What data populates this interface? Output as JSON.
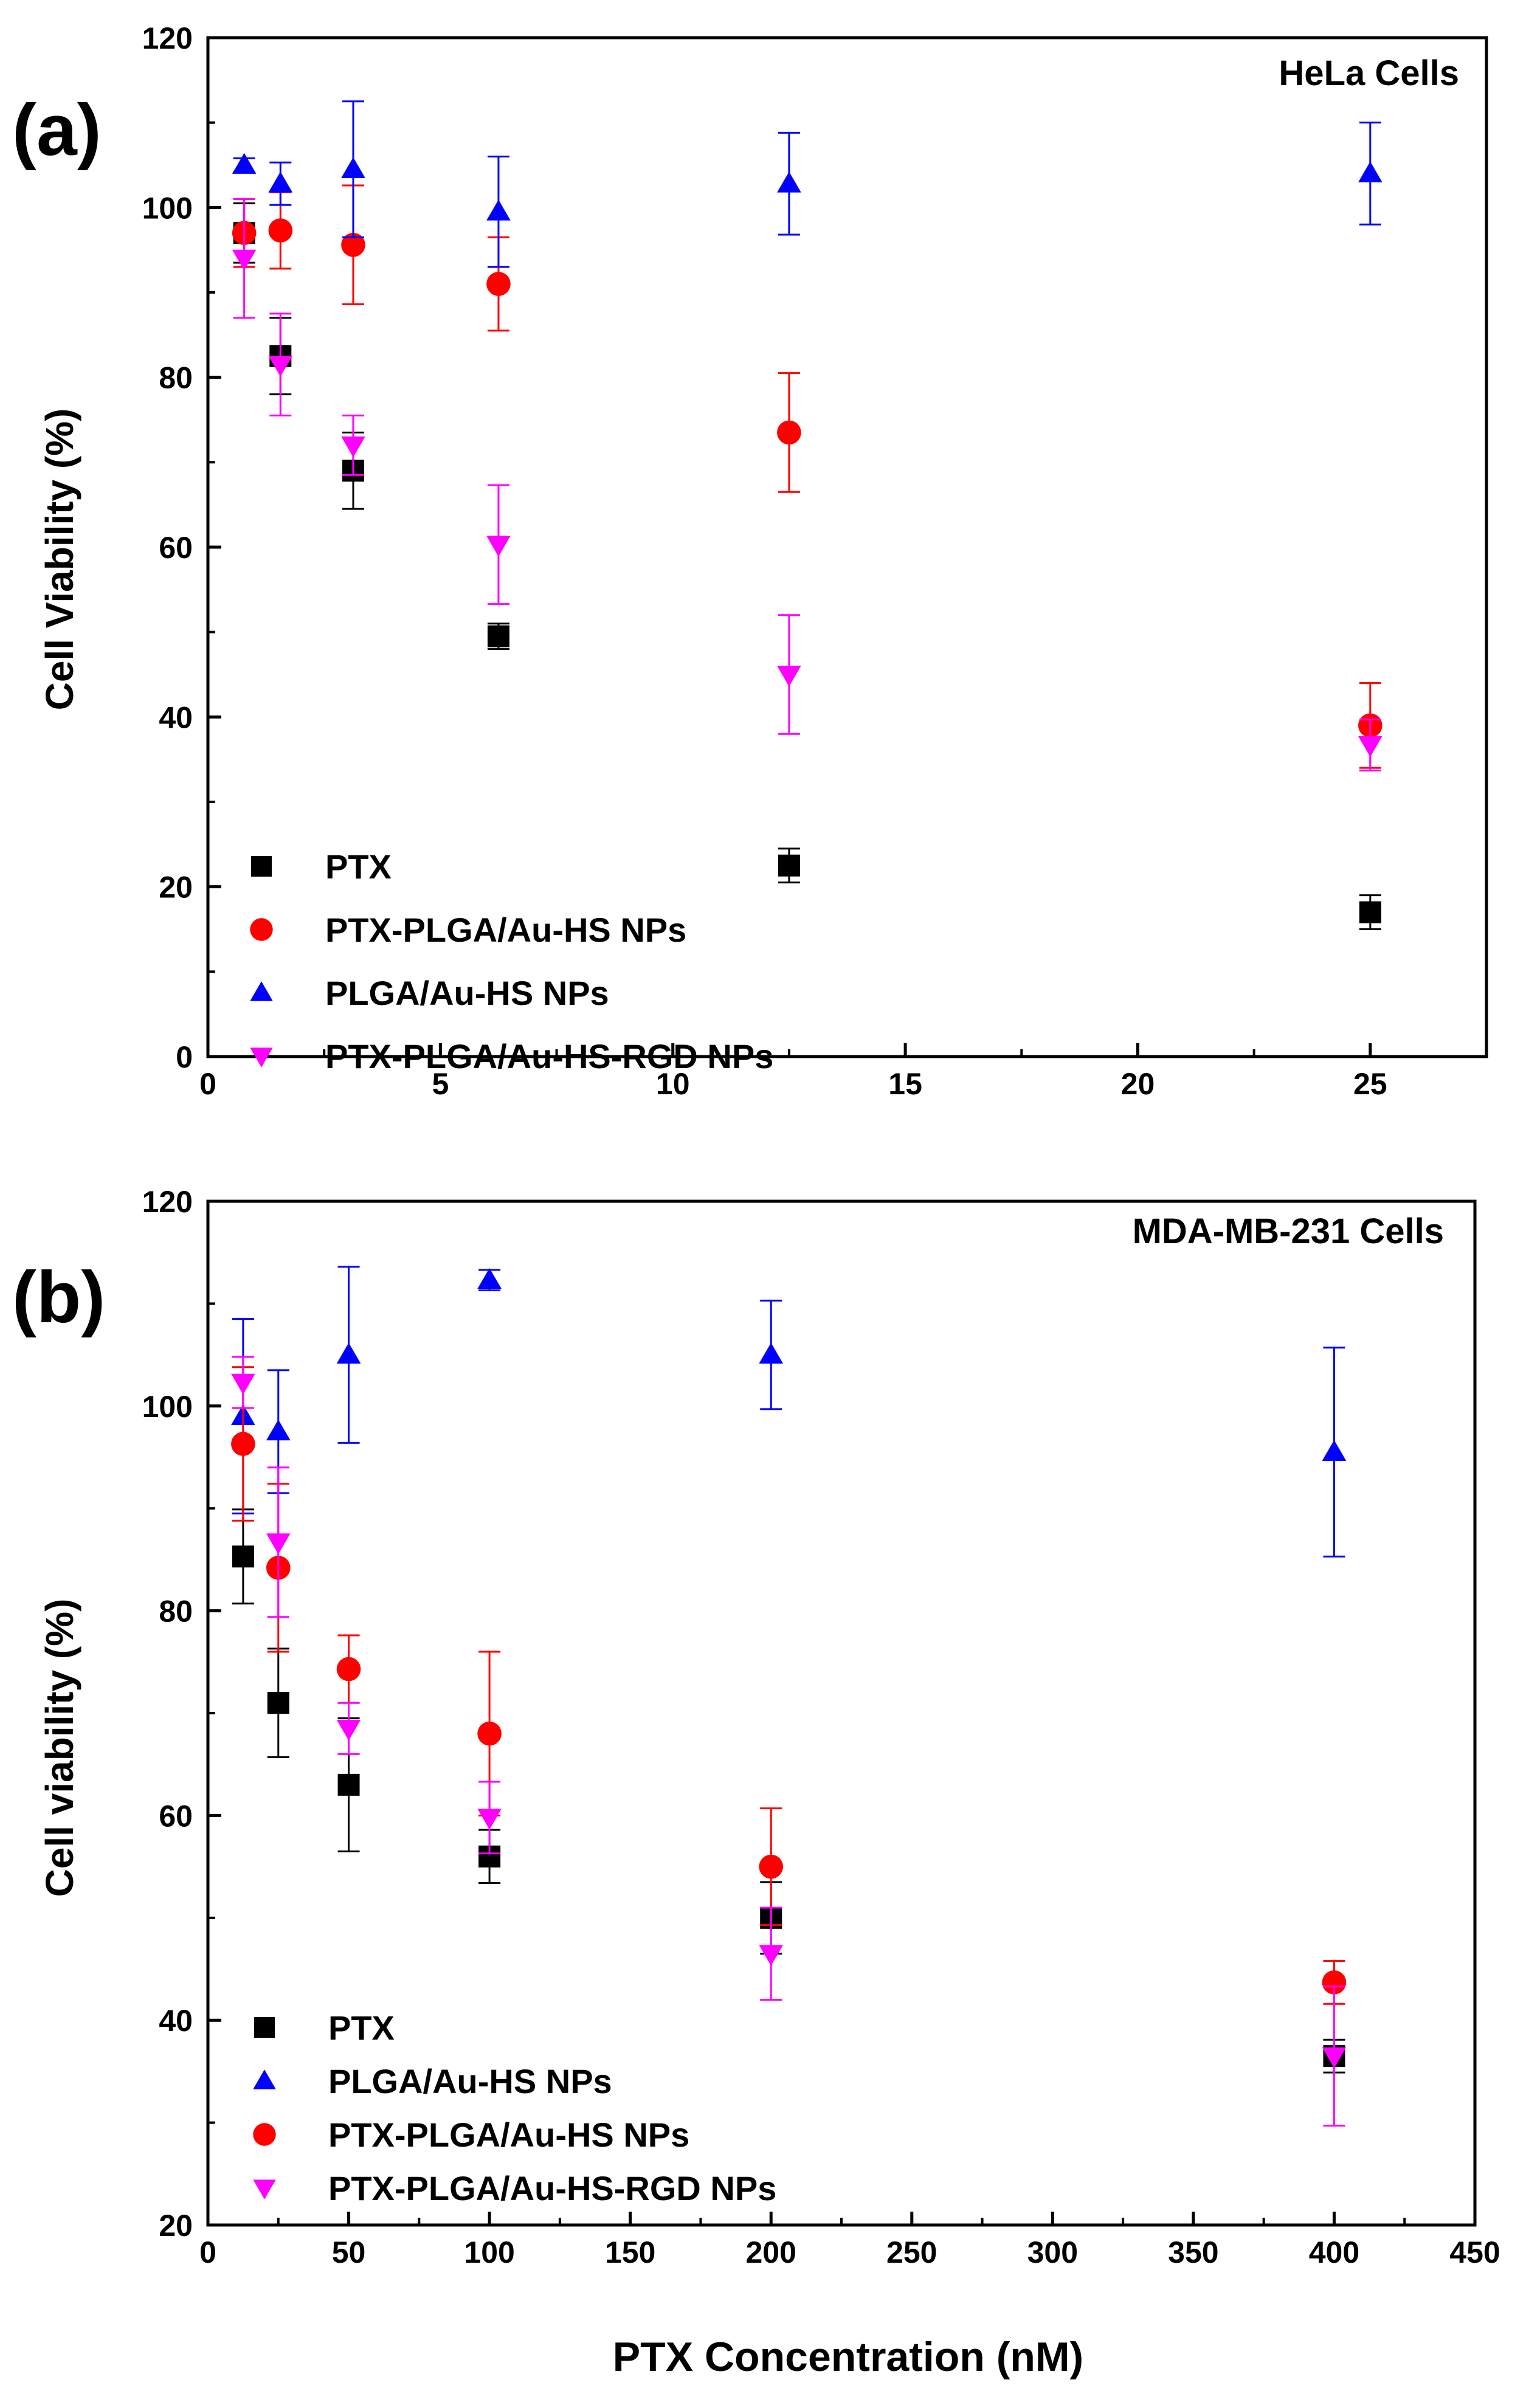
{
  "figure": {
    "panel_a_label": "(a)",
    "panel_b_label": "(b)",
    "shared_xlabel": "PTX Concentration (nM)"
  },
  "chart_data": [
    {
      "type": "scatter",
      "panel": "a",
      "title": "HeLa Cells",
      "xlabel": "",
      "ylabel": "Cell Viability (%)",
      "xlim": [
        0,
        27.5
      ],
      "ylim": [
        0,
        120
      ],
      "xticks": [
        0,
        5,
        10,
        15,
        20,
        25
      ],
      "yticks": [
        0,
        20,
        40,
        60,
        80,
        100,
        120
      ],
      "legend_position": "bottom-left",
      "series": [
        {
          "name": "PTX",
          "marker": "square",
          "color": "#000000",
          "x": [
            0.78,
            1.56,
            3.125,
            6.25,
            12.5,
            25
          ],
          "y": [
            97,
            82.5,
            69,
            49.5,
            22.5,
            17
          ],
          "err": [
            3.5,
            4.5,
            4.5,
            1.5,
            2,
            2
          ]
        },
        {
          "name": "PTX-PLGA/Au-HS NPs",
          "marker": "circle",
          "color": "#ff0000",
          "x": [
            0.78,
            1.56,
            3.125,
            6.25,
            12.5,
            25
          ],
          "y": [
            97,
            97.3,
            95.6,
            91,
            73.5,
            39
          ],
          "err": [
            4,
            4.5,
            7,
            5.5,
            7,
            5
          ]
        },
        {
          "name": "PLGA/Au-HS NPs",
          "marker": "triangle-up",
          "color": "#0000ff",
          "x": [
            0.78,
            1.56,
            3.125,
            6.25,
            12.5,
            25
          ],
          "y": [
            105,
            102.8,
            104.5,
            99.5,
            102.8,
            104
          ],
          "err": [
            0.8,
            2.5,
            8,
            6.5,
            6,
            6
          ]
        },
        {
          "name": "PTX-PLGA/Au-HS-RGD NPs",
          "marker": "triangle-down",
          "color": "#ff00ff",
          "x": [
            0.78,
            1.56,
            3.125,
            6.25,
            12.5,
            25
          ],
          "y": [
            94,
            81.5,
            72,
            60.3,
            45,
            36.7
          ],
          "err": [
            7,
            6,
            3.5,
            7,
            7,
            3
          ]
        }
      ]
    },
    {
      "type": "scatter",
      "panel": "b",
      "title": "MDA-MB-231 Cells",
      "xlabel": "PTX Concentration (nM)",
      "ylabel": "Cell viability (%)",
      "xlim": [
        0,
        450
      ],
      "ylim": [
        20,
        120
      ],
      "xticks": [
        0,
        50,
        100,
        150,
        200,
        250,
        300,
        350,
        400,
        450
      ],
      "yticks": [
        20,
        40,
        60,
        80,
        100,
        120
      ],
      "legend_position": "bottom-left",
      "series": [
        {
          "name": "PTX",
          "marker": "square",
          "color": "#000000",
          "x": [
            12.5,
            25,
            50,
            100,
            200,
            400
          ],
          "y": [
            85.3,
            71,
            63,
            56,
            50,
            36.5
          ],
          "err": [
            4.6,
            5.3,
            6.5,
            2.6,
            3.5,
            1.6
          ]
        },
        {
          "name": "PLGA/Au-HS NPs",
          "marker": "triangle-up",
          "color": "#0000ff",
          "x": [
            12.5,
            25,
            50,
            100,
            200,
            400
          ],
          "y": [
            99,
            97.5,
            105,
            112.3,
            105,
            95.5
          ],
          "err": [
            9.5,
            6,
            8.6,
            1,
            5.3,
            10.2
          ]
        },
        {
          "name": "PTX-PLGA/Au-HS NPs",
          "marker": "circle",
          "color": "#ff0000",
          "x": [
            12.5,
            25,
            50,
            100,
            200,
            400
          ],
          "y": [
            96.3,
            84.2,
            74.3,
            68,
            55,
            43.7
          ],
          "err": [
            7.5,
            8.2,
            3.3,
            8,
            5.7,
            2.1
          ]
        },
        {
          "name": "PTX-PLGA/Au-HS-RGD NPs",
          "marker": "triangle-down",
          "color": "#ff00ff",
          "x": [
            12.5,
            25,
            50,
            100,
            200,
            400
          ],
          "y": [
            102.3,
            86.7,
            68.5,
            59.8,
            46.5,
            36.5
          ],
          "err": [
            2.5,
            7.3,
            2.5,
            3.5,
            4.5,
            6.8
          ]
        }
      ]
    }
  ]
}
